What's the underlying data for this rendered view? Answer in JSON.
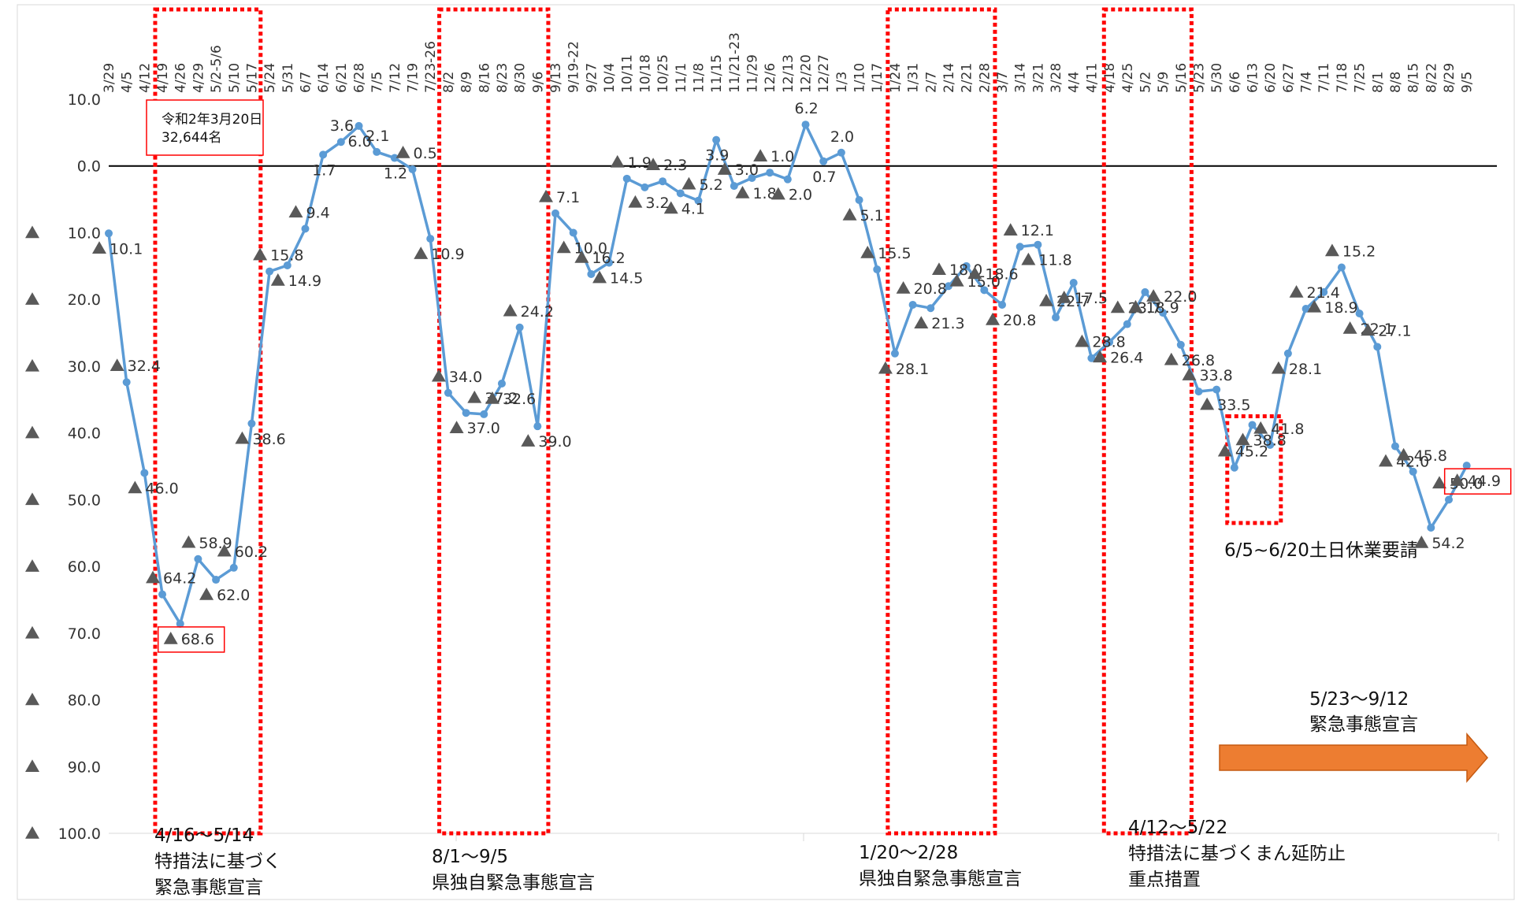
{
  "chart_data": {
    "type": "line",
    "title": "",
    "xlabel": "",
    "ylabel": "",
    "ylim": [
      -100,
      10
    ],
    "y_ticks": [
      {
        "value": 10,
        "label": "10.0"
      },
      {
        "value": 0,
        "label": "0.0"
      },
      {
        "value": -10,
        "label": "▲ 10.0"
      },
      {
        "value": -20,
        "label": "▲ 20.0"
      },
      {
        "value": -30,
        "label": "▲ 30.0"
      },
      {
        "value": -40,
        "label": "▲ 40.0"
      },
      {
        "value": -50,
        "label": "▲ 50.0"
      },
      {
        "value": -60,
        "label": "▲ 60.0"
      },
      {
        "value": -70,
        "label": "▲ 70.0"
      },
      {
        "value": -80,
        "label": "▲ 80.0"
      },
      {
        "value": -90,
        "label": "▲ 90.0"
      },
      {
        "value": -100,
        "label": "▲ 100.0"
      }
    ],
    "grid": false,
    "line_color": "#5b9bd5",
    "categories": [
      "3/29",
      "4/5",
      "4/12",
      "4/19",
      "4/26",
      "4/29",
      "5/2-5/6",
      "5/10",
      "5/17",
      "5/24",
      "5/31",
      "6/7",
      "6/14",
      "6/21",
      "6/28",
      "7/5",
      "7/12",
      "7/19",
      "7/23-26",
      "8/2",
      "8/9",
      "8/16",
      "8/23",
      "8/30",
      "9/6",
      "9/13",
      "9/19-22",
      "9/27",
      "10/4",
      "10/11",
      "10/18",
      "10/25",
      "11/1",
      "11/8",
      "11/15",
      "11/21-23",
      "11/29",
      "12/6",
      "12/13",
      "12/20",
      "12/27",
      "1/3",
      "1/10",
      "1/17",
      "1/24",
      "1/31",
      "2/7",
      "2/14",
      "2/21",
      "2/28",
      "3/7",
      "3/14",
      "3/21",
      "3/28",
      "4/4",
      "4/11",
      "4/18",
      "4/25",
      "5/2",
      "5/9",
      "5/16",
      "5/23",
      "5/30",
      "6/6",
      "6/13",
      "6/20",
      "6/27",
      "7/4",
      "7/11",
      "7/18",
      "7/25",
      "8/1",
      "8/8",
      "8/15",
      "8/22",
      "8/29",
      "9/5"
    ],
    "values": [
      -10.1,
      -32.4,
      -46.0,
      -64.2,
      -68.6,
      -58.9,
      -62.0,
      -60.2,
      -38.6,
      -15.8,
      -14.9,
      -9.4,
      1.7,
      3.6,
      6.0,
      2.1,
      1.2,
      -0.5,
      -10.9,
      -34.0,
      -37.0,
      -37.2,
      -32.6,
      -24.2,
      -39.0,
      -7.1,
      -10.0,
      -16.2,
      -14.5,
      -1.9,
      -3.2,
      -2.3,
      -4.1,
      -5.2,
      3.9,
      -3.0,
      -1.8,
      -1.0,
      -2.0,
      6.2,
      0.7,
      2.0,
      -5.1,
      -15.5,
      -28.1,
      -20.8,
      -21.3,
      -18.0,
      -15.0,
      -18.6,
      -20.8,
      -12.1,
      -11.8,
      -22.7,
      -17.5,
      -28.8,
      -26.4,
      -23.7,
      -18.9,
      -22.0,
      -26.8,
      -33.8,
      -33.5,
      -45.2,
      -38.8,
      -41.8,
      -28.1,
      -21.4,
      -18.9,
      -15.2,
      -22.1,
      -27.1,
      -42.0,
      -45.8,
      -54.2,
      -50.0,
      -44.9
    ],
    "point_labels": [
      {
        "i": 0,
        "text": "10.1",
        "neg": true
      },
      {
        "i": 1,
        "text": "32.4",
        "neg": true
      },
      {
        "i": 2,
        "text": "46.0",
        "neg": true
      },
      {
        "i": 3,
        "text": "64.2",
        "neg": true
      },
      {
        "i": 4,
        "text": "68.6",
        "neg": true
      },
      {
        "i": 5,
        "text": "58.9",
        "neg": true
      },
      {
        "i": 6,
        "text": "62.0",
        "neg": true
      },
      {
        "i": 7,
        "text": "60.2",
        "neg": true
      },
      {
        "i": 8,
        "text": "38.6",
        "neg": true
      },
      {
        "i": 9,
        "text": "15.8",
        "neg": true
      },
      {
        "i": 10,
        "text": "14.9",
        "neg": true
      },
      {
        "i": 11,
        "text": "9.4",
        "neg": true
      },
      {
        "i": 12,
        "text": "1.7",
        "neg": false
      },
      {
        "i": 13,
        "text": "3.6",
        "neg": false
      },
      {
        "i": 14,
        "text": "6.0",
        "neg": false
      },
      {
        "i": 15,
        "text": "2.1",
        "neg": false
      },
      {
        "i": 16,
        "text": "1.2",
        "neg": false
      },
      {
        "i": 17,
        "text": "0.5",
        "neg": true
      },
      {
        "i": 18,
        "text": "10.9",
        "neg": true
      },
      {
        "i": 19,
        "text": "34.0",
        "neg": true
      },
      {
        "i": 20,
        "text": "37.0",
        "neg": true
      },
      {
        "i": 21,
        "text": "37.2",
        "neg": true
      },
      {
        "i": 22,
        "text": "32.6",
        "neg": true
      },
      {
        "i": 23,
        "text": "24.2",
        "neg": true
      },
      {
        "i": 24,
        "text": "39.0",
        "neg": true
      },
      {
        "i": 25,
        "text": "7.1",
        "neg": true
      },
      {
        "i": 26,
        "text": "10.0",
        "neg": true
      },
      {
        "i": 27,
        "text": "16.2",
        "neg": true
      },
      {
        "i": 28,
        "text": "14.5",
        "neg": true
      },
      {
        "i": 29,
        "text": "1.9",
        "neg": true
      },
      {
        "i": 30,
        "text": "3.2",
        "neg": true
      },
      {
        "i": 31,
        "text": "2.3",
        "neg": true
      },
      {
        "i": 32,
        "text": "4.1",
        "neg": true
      },
      {
        "i": 33,
        "text": "5.2",
        "neg": true
      },
      {
        "i": 34,
        "text": "3.9",
        "neg": false
      },
      {
        "i": 35,
        "text": "3.0",
        "neg": true
      },
      {
        "i": 36,
        "text": "1.8",
        "neg": true
      },
      {
        "i": 37,
        "text": "1.0",
        "neg": true
      },
      {
        "i": 38,
        "text": "2.0",
        "neg": true
      },
      {
        "i": 39,
        "text": "6.2",
        "neg": false
      },
      {
        "i": 40,
        "text": "0.7",
        "neg": false
      },
      {
        "i": 41,
        "text": "2.0",
        "neg": false
      },
      {
        "i": 42,
        "text": "5.1",
        "neg": true
      },
      {
        "i": 43,
        "text": "15.5",
        "neg": true
      },
      {
        "i": 44,
        "text": "28.1",
        "neg": true
      },
      {
        "i": 45,
        "text": "20.8",
        "neg": true
      },
      {
        "i": 46,
        "text": "21.3",
        "neg": true
      },
      {
        "i": 47,
        "text": "18.0",
        "neg": true
      },
      {
        "i": 48,
        "text": "15.0",
        "neg": true
      },
      {
        "i": 49,
        "text": "18.6",
        "neg": true
      },
      {
        "i": 50,
        "text": "20.8",
        "neg": true
      },
      {
        "i": 51,
        "text": "12.1",
        "neg": true
      },
      {
        "i": 52,
        "text": "11.8",
        "neg": true
      },
      {
        "i": 53,
        "text": "22.7",
        "neg": true
      },
      {
        "i": 54,
        "text": "17.5",
        "neg": true
      },
      {
        "i": 55,
        "text": "28.8",
        "neg": true
      },
      {
        "i": 56,
        "text": "26.4",
        "neg": true
      },
      {
        "i": 57,
        "text": "23.7",
        "neg": true
      },
      {
        "i": 58,
        "text": "18.9",
        "neg": true
      },
      {
        "i": 59,
        "text": "22.0",
        "neg": true
      },
      {
        "i": 60,
        "text": "26.8",
        "neg": true
      },
      {
        "i": 61,
        "text": "33.8",
        "neg": true
      },
      {
        "i": 62,
        "text": "33.5",
        "neg": true
      },
      {
        "i": 63,
        "text": "45.2",
        "neg": true
      },
      {
        "i": 64,
        "text": "38.8",
        "neg": true
      },
      {
        "i": 65,
        "text": "41.8",
        "neg": true
      },
      {
        "i": 66,
        "text": "28.1",
        "neg": true
      },
      {
        "i": 67,
        "text": "21.4",
        "neg": true
      },
      {
        "i": 68,
        "text": "18.9",
        "neg": true
      },
      {
        "i": 69,
        "text": "15.2",
        "neg": true
      },
      {
        "i": 70,
        "text": "22.1",
        "neg": true
      },
      {
        "i": 71,
        "text": "27.1",
        "neg": true
      },
      {
        "i": 72,
        "text": "42.0",
        "neg": true
      },
      {
        "i": 73,
        "text": "45.8",
        "neg": true
      },
      {
        "i": 74,
        "text": "54.2",
        "neg": true
      },
      {
        "i": 75,
        "text": "50.0",
        "neg": true
      },
      {
        "i": 76,
        "text": "44.9",
        "neg": true
      }
    ],
    "highlight_colors": {
      "box": "#ff0000",
      "arrow": "#ed7d31",
      "arrow_border": "#c55a11"
    },
    "periods": [
      {
        "from": 2.6,
        "to": 8.5,
        "lines": [
          "4/16～5/14",
          "特措法に基づく",
          "緊急事態宣言"
        ]
      },
      {
        "from": 18.5,
        "to": 24.6,
        "lines": [
          "8/1～9/5",
          "県独自緊急事態宣言"
        ]
      },
      {
        "from": 43.6,
        "to": 49.6,
        "lines": [
          "1/20～2/28",
          "県独自緊急事態宣言"
        ]
      },
      {
        "from": 55.7,
        "to": 60.6,
        "lines": [
          "4/12～5/22",
          "特措法に基づくまん延防止",
          "重点措置"
        ]
      },
      {
        "from": 62.6,
        "to": 65.6,
        "y_top": -37.5,
        "y_bottom": -53.5,
        "lines": [
          "6/5~6/20土日休業要請"
        ]
      }
    ],
    "current_declaration": {
      "lines": [
        "5/23～9/12",
        "緊急事態宣言"
      ]
    },
    "baseline_note": {
      "lines": [
        "令和2年3月20日",
        "32,644名"
      ]
    },
    "boxed_labels": [
      4,
      76
    ]
  }
}
